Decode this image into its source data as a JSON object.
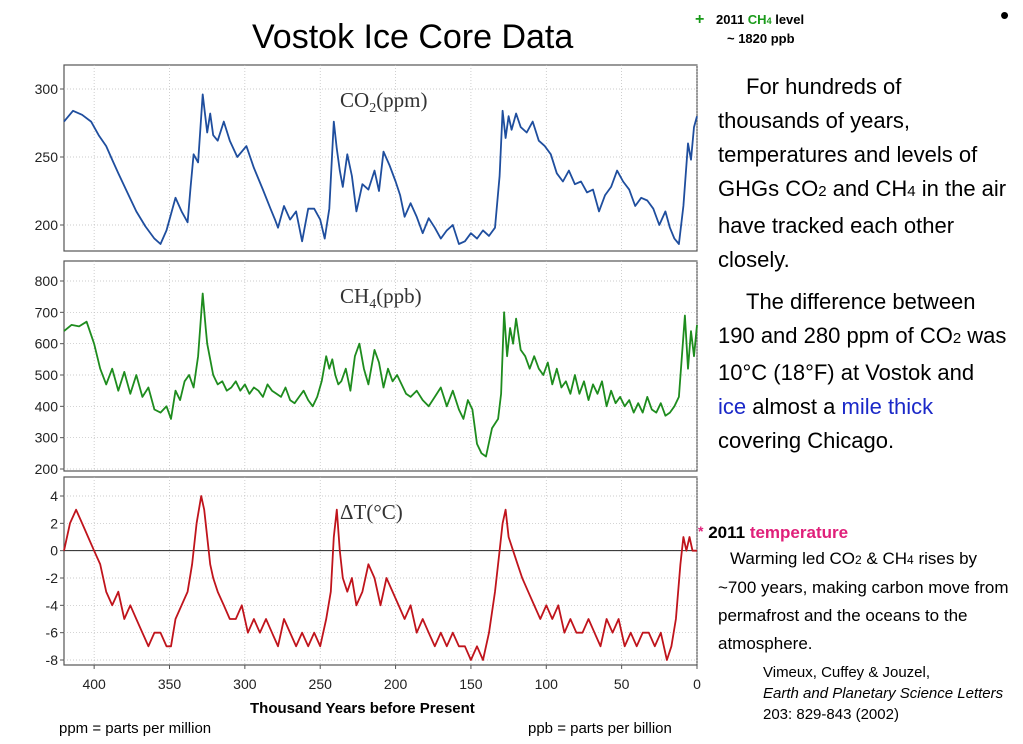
{
  "title": "Vostok Ice Core Data",
  "bullet": "•",
  "ch4_note": {
    "symbol": "+",
    "year": "2011",
    "gas_main": "CH",
    "gas_sub": "4",
    "word": "level",
    "value": "~ 1820 ppb"
  },
  "paragraph1": {
    "a": "For hundreds of thousands of years, temperatures and levels of GHGs CO",
    "sub1": "2",
    "b": " and CH",
    "sub2": "4",
    "c": " in the air have tracked each other closely."
  },
  "paragraph2": {
    "a": "The difference between 190 and 280 ppm of CO",
    "sub1": "2",
    "b": " was 10°C (18°F) at Vostok and ",
    "link1": "ice",
    "c": " almost a ",
    "link2": "mile thick",
    "d": " covering Chicago."
  },
  "temp_note": {
    "symbol": "*",
    "year": "2011",
    "word": "temperature"
  },
  "paragraph3": {
    "a": "Warming led CO",
    "sub1": "2",
    "b": " & CH",
    "sub2": "4",
    "c": " rises by ~700 years, making carbon move from permafrost and the oceans to the atmosphere."
  },
  "citation": {
    "authors": "Vimeux, Cuffey & Jouzel,",
    "journal": "Earth and Planetary Science Letters",
    "details": " 203: 829-843 (2002)"
  },
  "footer": {
    "xaxis_title": "Thousand Years before Present",
    "ppm_note": "ppm = parts per million",
    "ppb_note": "ppb = parts per billion"
  },
  "colors": {
    "co2": "#1f4e9e",
    "ch4": "#1e8c1e",
    "temp": "#c0141c",
    "link": "#1a28c8",
    "note_green": "#1a9a1a",
    "note_pink": "#e0207a"
  },
  "chart_data": {
    "type": "line",
    "title": "Vostok Ice Core Data",
    "xlabel": "Thousand Years before Present",
    "x_ticks": [
      400,
      350,
      300,
      250,
      200,
      150,
      100,
      50,
      0
    ],
    "xlim": [
      420,
      0
    ],
    "panels": [
      {
        "name": "CO2(ppm)",
        "label_main": "CO",
        "label_sub": "2",
        "label_unit": "(ppm)",
        "ylim": [
          178,
          305
        ],
        "y_ticks": [
          200,
          250,
          300
        ],
        "x": [
          420,
          414,
          408,
          402,
          397,
          392,
          388,
          384,
          378,
          372,
          366,
          360,
          356,
          352,
          349,
          346,
          342,
          338,
          336,
          334,
          331,
          328,
          325,
          323,
          321,
          318,
          314,
          310,
          305,
          299,
          294,
          288,
          283,
          280,
          278,
          274,
          270,
          266,
          262,
          258,
          254,
          250,
          247,
          244,
          241,
          239,
          237,
          235,
          232,
          229,
          226,
          222,
          218,
          214,
          211,
          208,
          204,
          200,
          197,
          194,
          190,
          186,
          182,
          178,
          174,
          170,
          166,
          162,
          158,
          154,
          150,
          146,
          142,
          138,
          134,
          131,
          129,
          127,
          125,
          123,
          120,
          117,
          113,
          109,
          105,
          101,
          97,
          93,
          89,
          85,
          81,
          77,
          73,
          69,
          65,
          61,
          57,
          53,
          49,
          45,
          41,
          37,
          33,
          29,
          25,
          21,
          18,
          15,
          12,
          9,
          6,
          4,
          2,
          0
        ],
        "values": [
          276,
          284,
          281,
          276,
          266,
          258,
          248,
          238,
          224,
          210,
          199,
          190,
          186,
          196,
          208,
          220,
          210,
          202,
          228,
          252,
          246,
          296,
          268,
          282,
          266,
          262,
          276,
          262,
          250,
          258,
          242,
          226,
          212,
          204,
          198,
          214,
          204,
          210,
          188,
          212,
          212,
          204,
          190,
          212,
          276,
          256,
          240,
          228,
          252,
          236,
          210,
          230,
          226,
          240,
          225,
          254,
          244,
          232,
          222,
          206,
          216,
          206,
          194,
          205,
          198,
          190,
          196,
          200,
          186,
          188,
          194,
          190,
          196,
          192,
          198,
          236,
          284,
          264,
          280,
          270,
          282,
          272,
          268,
          276,
          262,
          258,
          252,
          238,
          232,
          240,
          230,
          232,
          224,
          226,
          210,
          222,
          228,
          240,
          232,
          226,
          214,
          220,
          218,
          212,
          200,
          210,
          198,
          190,
          186,
          214,
          260,
          248,
          272,
          280
        ]
      },
      {
        "name": "CH4(ppb)",
        "label_main": "CH",
        "label_sub": "4",
        "label_unit": "(ppb)",
        "ylim": [
          195,
          820
        ],
        "y_ticks": [
          200,
          300,
          400,
          500,
          600,
          700,
          800
        ],
        "x": [
          420,
          415,
          410,
          405,
          400,
          396,
          392,
          388,
          384,
          380,
          376,
          372,
          368,
          364,
          360,
          356,
          352,
          349,
          346,
          343,
          340,
          337,
          334,
          331,
          328,
          326,
          325,
          323,
          321,
          318,
          315,
          312,
          309,
          306,
          303,
          300,
          297,
          294,
          291,
          288,
          285,
          282,
          279,
          276,
          273,
          270,
          267,
          264,
          261,
          258,
          255,
          252,
          249,
          246,
          244,
          242,
          240,
          238,
          236,
          233,
          230,
          227,
          224,
          221,
          218,
          214,
          211,
          208,
          205,
          202,
          199,
          196,
          193,
          190,
          186,
          182,
          178,
          174,
          170,
          166,
          162,
          158,
          155,
          152,
          149,
          146,
          143,
          140,
          136,
          132,
          130,
          128,
          126,
          124,
          122,
          120,
          117,
          114,
          111,
          108,
          105,
          102,
          99,
          96,
          93,
          90,
          87,
          84,
          81,
          78,
          75,
          72,
          69,
          66,
          63,
          60,
          57,
          54,
          51,
          48,
          45,
          42,
          39,
          36,
          33,
          30,
          27,
          24,
          21,
          18,
          15,
          12,
          10,
          8,
          6,
          4,
          2,
          0
        ],
        "values": [
          640,
          660,
          655,
          670,
          600,
          520,
          470,
          520,
          450,
          510,
          440,
          500,
          430,
          460,
          390,
          380,
          400,
          360,
          450,
          420,
          480,
          500,
          460,
          560,
          760,
          650,
          600,
          550,
          500,
          470,
          480,
          450,
          460,
          480,
          450,
          470,
          440,
          460,
          450,
          430,
          470,
          450,
          440,
          430,
          460,
          420,
          410,
          430,
          450,
          420,
          400,
          430,
          480,
          560,
          520,
          550,
          500,
          470,
          480,
          520,
          450,
          560,
          600,
          520,
          470,
          580,
          540,
          460,
          520,
          480,
          500,
          470,
          440,
          430,
          450,
          420,
          400,
          430,
          460,
          400,
          450,
          390,
          360,
          420,
          390,
          280,
          250,
          240,
          330,
          360,
          440,
          700,
          560,
          650,
          600,
          680,
          580,
          560,
          520,
          560,
          520,
          500,
          540,
          470,
          520,
          460,
          480,
          440,
          500,
          440,
          480,
          420,
          470,
          440,
          480,
          400,
          450,
          410,
          430,
          400,
          420,
          380,
          410,
          380,
          430,
          390,
          380,
          410,
          370,
          380,
          400,
          430,
          560,
          690,
          520,
          640,
          560,
          660
        ]
      },
      {
        "name": "ΔT(°C)",
        "label_main": "ΔT(°C)",
        "label_sub": "",
        "label_unit": "",
        "ylim": [
          -8.5,
          4.5
        ],
        "y_ticks": [
          4,
          2,
          0,
          -2,
          -4,
          -6,
          -8
        ],
        "x": [
          420,
          416,
          412,
          408,
          404,
          400,
          396,
          392,
          388,
          384,
          380,
          376,
          372,
          368,
          364,
          360,
          356,
          352,
          349,
          346,
          342,
          338,
          335,
          332,
          329,
          327,
          325,
          323,
          321,
          318,
          314,
          310,
          306,
          302,
          298,
          294,
          290,
          286,
          282,
          278,
          274,
          270,
          266,
          262,
          258,
          254,
          250,
          246,
          243,
          241,
          239,
          237,
          235,
          232,
          229,
          226,
          222,
          218,
          214,
          210,
          206,
          202,
          198,
          194,
          190,
          186,
          182,
          178,
          174,
          170,
          166,
          162,
          158,
          154,
          150,
          146,
          142,
          138,
          134,
          131,
          129,
          127,
          125,
          122,
          119,
          116,
          112,
          108,
          104,
          100,
          96,
          92,
          88,
          84,
          80,
          76,
          72,
          68,
          64,
          60,
          56,
          52,
          48,
          44,
          40,
          36,
          32,
          28,
          24,
          20,
          17,
          14,
          11,
          9,
          7,
          5,
          3,
          1,
          0
        ],
        "values": [
          0,
          2,
          3,
          2,
          1,
          0,
          -1,
          -3,
          -4,
          -3,
          -5,
          -4,
          -5,
          -6,
          -7,
          -6,
          -6,
          -7,
          -7,
          -5,
          -4,
          -3,
          -1,
          2,
          4,
          3,
          1,
          -1,
          -2,
          -3,
          -4,
          -5,
          -5,
          -4,
          -6,
          -5,
          -6,
          -5,
          -6,
          -7,
          -5,
          -6,
          -7,
          -6,
          -7,
          -6,
          -7,
          -5,
          -3,
          1,
          3,
          0,
          -2,
          -3,
          -2,
          -4,
          -3,
          -1,
          -2,
          -4,
          -2,
          -3,
          -4,
          -5,
          -4,
          -6,
          -5,
          -6,
          -7,
          -6,
          -7,
          -6,
          -7,
          -7,
          -8,
          -7,
          -8,
          -6,
          -3,
          0,
          2,
          3,
          1,
          0,
          -1,
          -2,
          -3,
          -4,
          -5,
          -4,
          -5,
          -4,
          -6,
          -5,
          -6,
          -6,
          -5,
          -6,
          -7,
          -5,
          -6,
          -5,
          -7,
          -6,
          -7,
          -6,
          -6,
          -7,
          -6,
          -8,
          -7,
          -5,
          -1,
          1,
          0,
          1,
          0,
          0,
          0
        ]
      }
    ],
    "grid": true,
    "zero_line_panel": "ΔT(°C)"
  }
}
